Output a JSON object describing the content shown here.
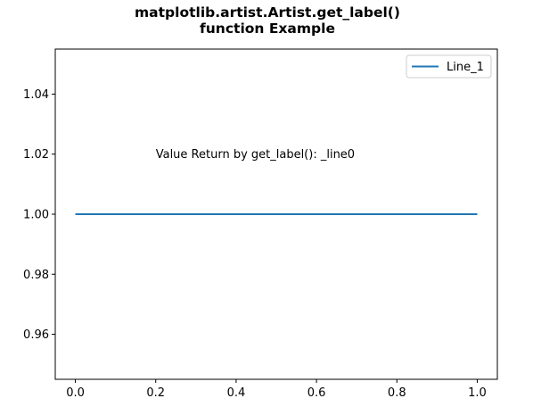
{
  "chart_data": {
    "type": "line",
    "title_line1": "matplotlib.artist.Artist.get_label()",
    "title_line2": "function Example",
    "xlabel": "",
    "ylabel": "",
    "x": [
      0.0,
      1.0
    ],
    "series": [
      {
        "name": "Line_1",
        "values": [
          1.0,
          1.0
        ],
        "color": "#1f77b4"
      }
    ],
    "xlim": [
      -0.05,
      1.05
    ],
    "ylim": [
      0.945,
      1.055
    ],
    "xticks": [
      0.0,
      0.2,
      0.4,
      0.6,
      0.8,
      1.0
    ],
    "xtick_labels": [
      "0.0",
      "0.2",
      "0.4",
      "0.6",
      "0.8",
      "1.0"
    ],
    "yticks": [
      0.96,
      0.98,
      1.0,
      1.02,
      1.04
    ],
    "ytick_labels": [
      "0.96",
      "0.98",
      "1.00",
      "1.02",
      "1.04"
    ],
    "grid": false,
    "legend_position": "top-right",
    "annotation": {
      "text": "Value Return by get_label(): _line0",
      "x": 0.2,
      "y": 1.02
    }
  }
}
